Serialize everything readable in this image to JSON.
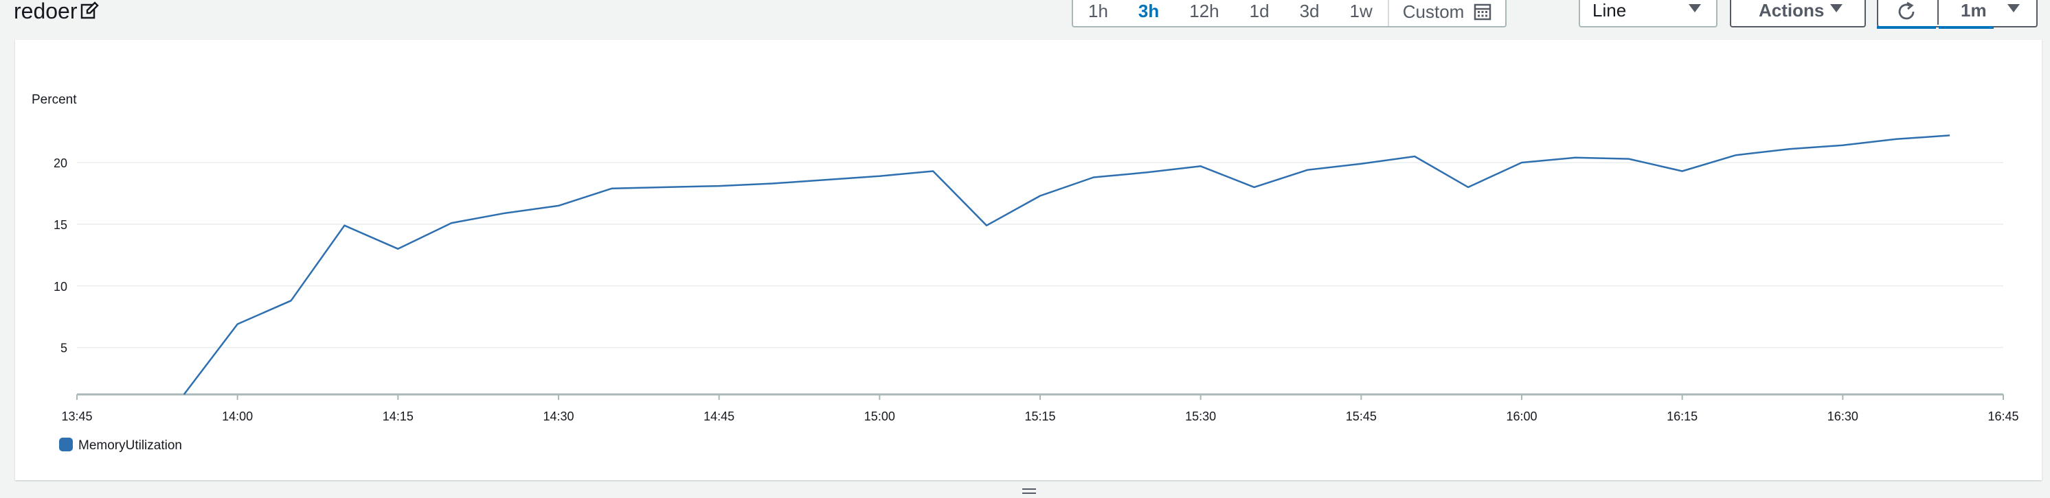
{
  "header": {
    "title": "redoer",
    "edit_icon": "edit-icon",
    "time_ranges": [
      {
        "label": "1h",
        "active": false
      },
      {
        "label": "3h",
        "active": true
      },
      {
        "label": "12h",
        "active": false
      },
      {
        "label": "1d",
        "active": false
      },
      {
        "label": "3d",
        "active": false
      },
      {
        "label": "1w",
        "active": false
      }
    ],
    "custom_label": "Custom",
    "calendar_icon": "calendar-icon",
    "chart_type_value": "Line",
    "actions_label": "Actions",
    "refresh_icon": "refresh-icon",
    "refresh_interval": "1m"
  },
  "colors": {
    "accent": "#0073bb",
    "series": "#2e6fb0",
    "grid": "#eaeded",
    "axis": "#aab7b8"
  },
  "chart_data": {
    "type": "line",
    "ylabel": "Percent",
    "x_ticks": [
      "13:45",
      "14:00",
      "14:15",
      "14:30",
      "14:45",
      "15:00",
      "15:15",
      "15:30",
      "15:45",
      "16:00",
      "16:15",
      "16:30",
      "16:45"
    ],
    "y_ticks": [
      5,
      10,
      15,
      20
    ],
    "xlim": [
      "13:45",
      "16:45"
    ],
    "ylim": [
      1.2,
      22.5
    ],
    "grid": true,
    "legend_position": "bottom-left",
    "series": [
      {
        "name": "MemoryUtilization",
        "color": "#2e6fb0",
        "x": [
          "13:55",
          "14:00",
          "14:05",
          "14:10",
          "14:15",
          "14:20",
          "14:25",
          "14:30",
          "14:35",
          "14:40",
          "14:45",
          "14:50",
          "14:55",
          "15:00",
          "15:05",
          "15:10",
          "15:15",
          "15:20",
          "15:25",
          "15:30",
          "15:35",
          "15:40",
          "15:45",
          "15:50",
          "15:55",
          "16:00",
          "16:05",
          "16:10",
          "16:15",
          "16:20",
          "16:25",
          "16:30",
          "16:35",
          "16:40"
        ],
        "values": [
          1.2,
          6.9,
          8.8,
          14.9,
          13.0,
          15.1,
          15.9,
          16.5,
          17.9,
          18.0,
          18.1,
          18.3,
          18.6,
          18.9,
          19.3,
          14.9,
          17.3,
          18.8,
          19.2,
          19.7,
          18.0,
          19.4,
          19.9,
          20.5,
          18.0,
          20.0,
          20.4,
          20.3,
          19.3,
          20.6,
          21.1,
          21.4,
          21.9,
          22.2
        ]
      }
    ]
  }
}
